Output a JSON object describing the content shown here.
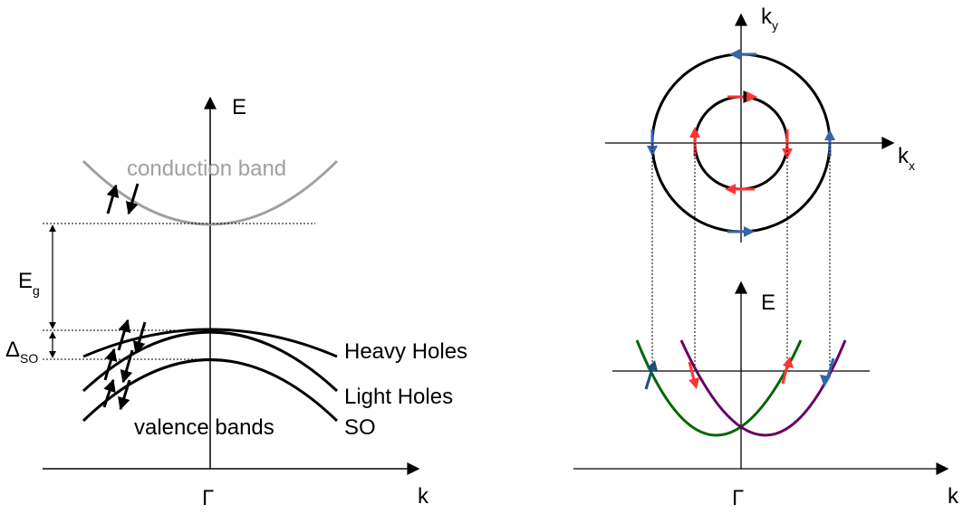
{
  "band_diagram": {
    "axis_energy": "E",
    "axis_momentum": "k",
    "gamma_point": "Γ",
    "conduction_band": "conduction band",
    "gap_label": "E",
    "gap_sub": "g",
    "split_label": "Δ",
    "split_sub": "SO",
    "heavy_holes": "Heavy Holes",
    "light_holes": "Light Holes",
    "split_off": "SO",
    "valence_bands": "valence bands"
  },
  "spin_diagram": {
    "ky_label": "k",
    "ky_sub": "y",
    "kx_label": "k",
    "kx_sub": "x",
    "energy_label": "E",
    "gamma_point": "Γ",
    "momentum_label": "k"
  },
  "colors": {
    "conduction": "#a0a0a0",
    "inner_spin": "#ff3333",
    "outer_spin": "#3366aa",
    "branch_green": "#006600",
    "branch_purple": "#660066",
    "arrow_dark_blue": "#1f4e79"
  }
}
